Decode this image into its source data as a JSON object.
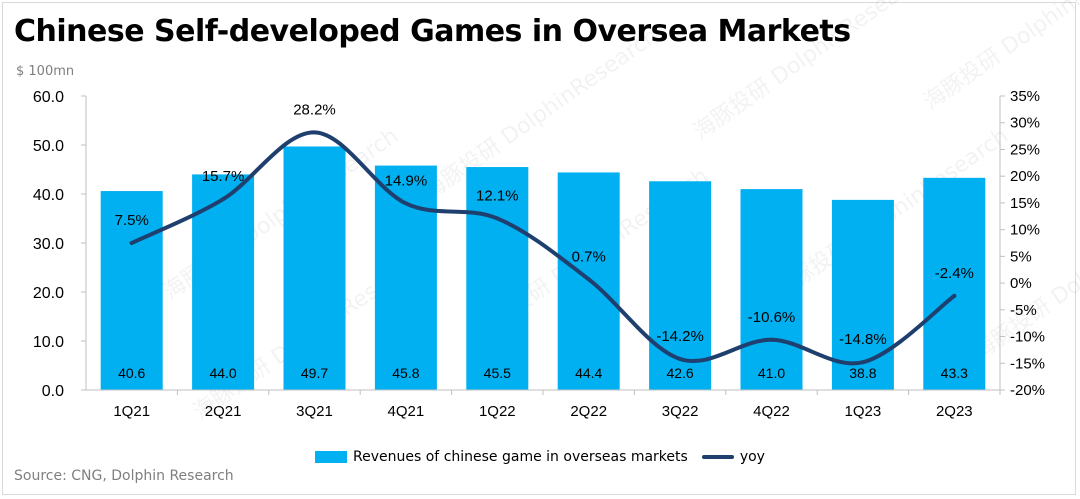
{
  "title": "Chinese Self-developed Games in Oversea Markets",
  "source": "Source: CNG, Dolphin Research",
  "chart_data": {
    "type": "bar+line",
    "title": "Chinese Self-developed Games in Oversea Markets",
    "ylabel_left": "$ 100mn",
    "categories": [
      "1Q21",
      "2Q21",
      "3Q21",
      "4Q21",
      "1Q22",
      "2Q22",
      "3Q22",
      "4Q22",
      "1Q23",
      "2Q23"
    ],
    "series": [
      {
        "name": "Revenues of chinese game in overseas markets",
        "type": "bar",
        "axis": "left",
        "color": "#00b0f0",
        "values": [
          40.6,
          44.0,
          49.7,
          45.8,
          45.5,
          44.4,
          42.6,
          41.0,
          38.8,
          43.3
        ],
        "labels": [
          "40.6",
          "44.0",
          "49.7",
          "45.8",
          "45.5",
          "44.4",
          "42.6",
          "41.0",
          "38.8",
          "43.3"
        ]
      },
      {
        "name": "yoy",
        "type": "line",
        "axis": "right",
        "color": "#1f3f6e",
        "values": [
          7.5,
          15.7,
          28.2,
          14.9,
          12.1,
          0.7,
          -14.2,
          -10.6,
          -14.8,
          -2.4
        ],
        "labels": [
          "7.5%",
          "15.7%",
          "28.2%",
          "14.9%",
          "12.1%",
          "0.7%",
          "-14.2%",
          "-10.6%",
          "-14.8%",
          "-2.4%"
        ]
      }
    ],
    "ylim_left": [
      0,
      60
    ],
    "yticks_left": [
      "0.0",
      "10.0",
      "20.0",
      "30.0",
      "40.0",
      "50.0",
      "60.0"
    ],
    "ylim_right": [
      -20,
      35
    ],
    "yticks_right": [
      "-20%",
      "-15%",
      "-10%",
      "-5%",
      "0%",
      "5%",
      "10%",
      "15%",
      "20%",
      "25%",
      "30%",
      "35%"
    ],
    "grid": false,
    "legend_placement": "bottom"
  },
  "watermark": "海豚投研 DolphinResearch"
}
